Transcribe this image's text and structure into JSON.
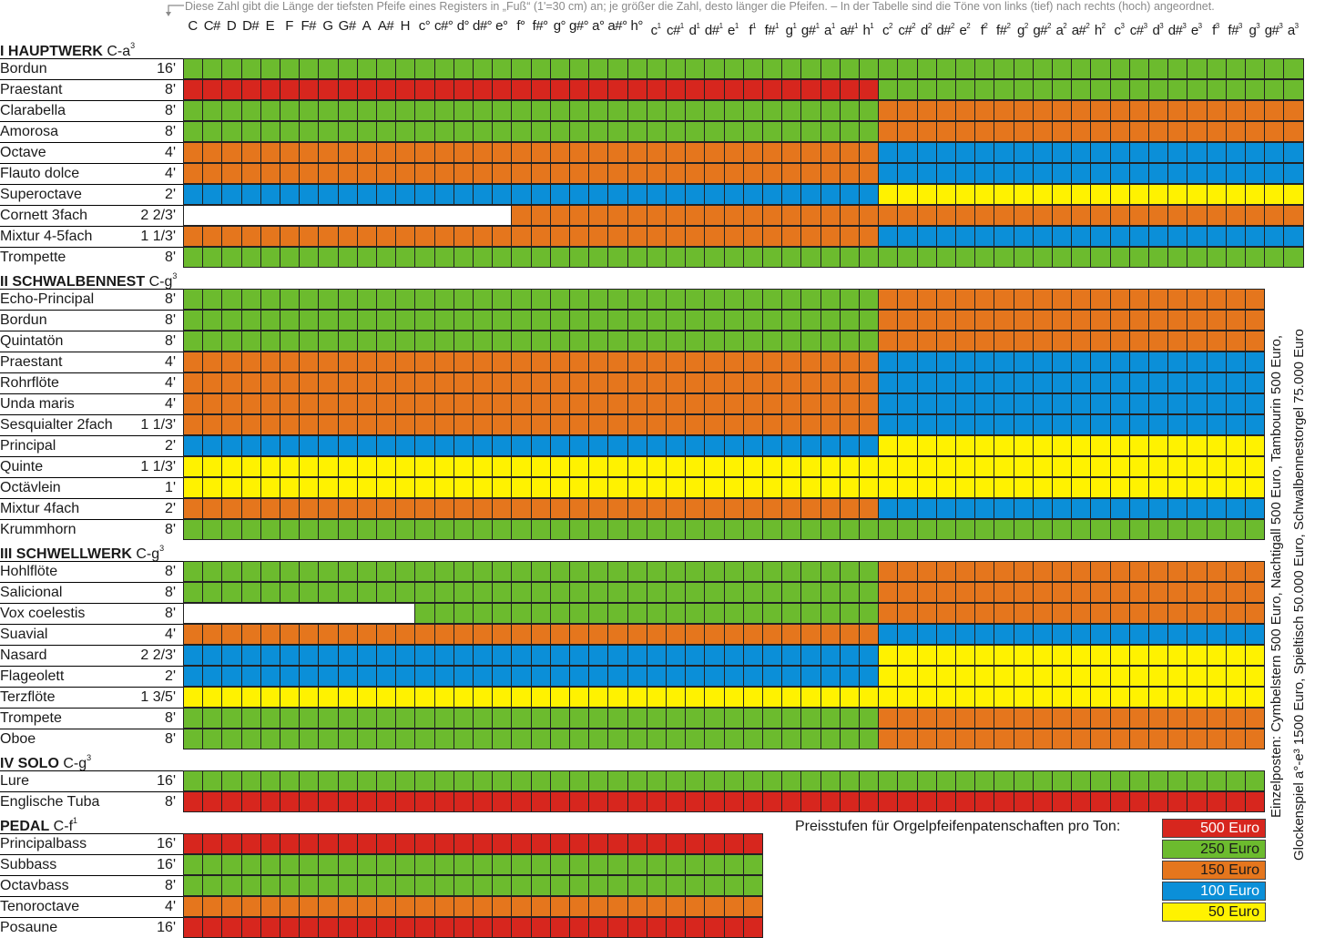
{
  "note": "Diese Zahl gibt die Länge der tiefsten Pfeife eines Registers in „Fuß“ (1'=30 cm) an; je größer die Zahl, desto länger die Pfeifen. – In der Tabelle sind die Töne von links (tief) nach rechts (hoch) angeordnet.",
  "notes": [
    [
      "C",
      ""
    ],
    [
      "C#",
      ""
    ],
    [
      "D",
      ""
    ],
    [
      "D#",
      ""
    ],
    [
      "E",
      ""
    ],
    [
      "F",
      ""
    ],
    [
      "F#",
      ""
    ],
    [
      "G",
      ""
    ],
    [
      "G#",
      ""
    ],
    [
      "A",
      ""
    ],
    [
      "A#",
      ""
    ],
    [
      "H",
      ""
    ],
    [
      "c°",
      ""
    ],
    [
      "c#°",
      ""
    ],
    [
      "d°",
      ""
    ],
    [
      "d#°",
      ""
    ],
    [
      "e°",
      ""
    ],
    [
      "f°",
      ""
    ],
    [
      "f#°",
      ""
    ],
    [
      "g°",
      ""
    ],
    [
      "g#°",
      ""
    ],
    [
      "a°",
      ""
    ],
    [
      "a#°",
      ""
    ],
    [
      "h°",
      ""
    ],
    [
      "c",
      "1"
    ],
    [
      "c#",
      "1"
    ],
    [
      "d",
      "1"
    ],
    [
      "d#",
      "1"
    ],
    [
      "e",
      "1"
    ],
    [
      "f",
      "1"
    ],
    [
      "f#",
      "1"
    ],
    [
      "g",
      "1"
    ],
    [
      "g#",
      "1"
    ],
    [
      "a",
      "1"
    ],
    [
      "a#",
      "1"
    ],
    [
      "h",
      "1"
    ],
    [
      "c",
      "2"
    ],
    [
      "c#",
      "2"
    ],
    [
      "d",
      "2"
    ],
    [
      "d#",
      "2"
    ],
    [
      "e",
      "2"
    ],
    [
      "f",
      "2"
    ],
    [
      "f#",
      "2"
    ],
    [
      "g",
      "2"
    ],
    [
      "g#",
      "2"
    ],
    [
      "a",
      "2"
    ],
    [
      "a#",
      "2"
    ],
    [
      "h",
      "2"
    ],
    [
      "c",
      "3"
    ],
    [
      "c#",
      "3"
    ],
    [
      "d",
      "3"
    ],
    [
      "d#",
      "3"
    ],
    [
      "e",
      "3"
    ],
    [
      "f",
      "3"
    ],
    [
      "f#",
      "3"
    ],
    [
      "g",
      "3"
    ],
    [
      "g#",
      "3"
    ],
    [
      "a",
      "3"
    ]
  ],
  "sections": [
    {
      "title": "I HAUPTWERK",
      "range": "C-a",
      "range_sup": "3",
      "registers": [
        {
          "name": "Bordun",
          "foot": "16'",
          "segments": [
            [
              0,
              58,
              "250"
            ]
          ]
        },
        {
          "name": "Praestant",
          "foot": "8'",
          "segments": [
            [
              0,
              36,
              "500"
            ],
            [
              36,
              58,
              "250"
            ]
          ]
        },
        {
          "name": "Clarabella",
          "foot": "8'",
          "segments": [
            [
              0,
              36,
              "250"
            ],
            [
              36,
              58,
              "150"
            ]
          ]
        },
        {
          "name": "Amorosa",
          "foot": "8'",
          "segments": [
            [
              0,
              36,
              "250"
            ],
            [
              36,
              58,
              "150"
            ]
          ]
        },
        {
          "name": "Octave",
          "foot": "4'",
          "segments": [
            [
              0,
              36,
              "150"
            ],
            [
              36,
              58,
              "100"
            ]
          ]
        },
        {
          "name": "Flauto dolce",
          "foot": "4'",
          "segments": [
            [
              0,
              36,
              "150"
            ],
            [
              36,
              58,
              "100"
            ]
          ]
        },
        {
          "name": "Superoctave",
          "foot": "2'",
          "segments": [
            [
              0,
              36,
              "100"
            ],
            [
              36,
              58,
              "50"
            ]
          ]
        },
        {
          "name": "Cornett 3fach",
          "foot": "2 2/3'",
          "segments": [
            [
              0,
              17,
              "none"
            ],
            [
              17,
              58,
              "150"
            ]
          ]
        },
        {
          "name": "Mixtur 4-5fach",
          "foot": "1 1/3'",
          "segments": [
            [
              0,
              36,
              "150"
            ],
            [
              36,
              58,
              "100"
            ]
          ]
        },
        {
          "name": "Trompette",
          "foot": "8'",
          "segments": [
            [
              0,
              58,
              "250"
            ]
          ]
        }
      ]
    },
    {
      "title": "II SCHWALBENNEST",
      "range": "C-g",
      "range_sup": "3",
      "registers": [
        {
          "name": "Echo-Principal",
          "foot": "8'",
          "segments": [
            [
              0,
              36,
              "250"
            ],
            [
              36,
              56,
              "150"
            ]
          ]
        },
        {
          "name": "Bordun",
          "foot": "8'",
          "segments": [
            [
              0,
              36,
              "250"
            ],
            [
              36,
              56,
              "150"
            ]
          ]
        },
        {
          "name": "Quintatön",
          "foot": "8'",
          "segments": [
            [
              0,
              36,
              "250"
            ],
            [
              36,
              56,
              "150"
            ]
          ]
        },
        {
          "name": "Praestant",
          "foot": "4'",
          "segments": [
            [
              0,
              36,
              "150"
            ],
            [
              36,
              56,
              "100"
            ]
          ]
        },
        {
          "name": "Rohrflöte",
          "foot": "4'",
          "segments": [
            [
              0,
              36,
              "150"
            ],
            [
              36,
              56,
              "100"
            ]
          ]
        },
        {
          "name": "Unda maris",
          "foot": "4'",
          "segments": [
            [
              0,
              36,
              "150"
            ],
            [
              36,
              56,
              "100"
            ]
          ]
        },
        {
          "name": "Sesquialter 2fach",
          "foot": "1 1/3'",
          "segments": [
            [
              0,
              36,
              "150"
            ],
            [
              36,
              56,
              "100"
            ]
          ]
        },
        {
          "name": "Principal",
          "foot": "2'",
          "segments": [
            [
              0,
              36,
              "100"
            ],
            [
              36,
              56,
              "50"
            ]
          ]
        },
        {
          "name": "Quinte",
          "foot": "1 1/3'",
          "segments": [
            [
              0,
              56,
              "50"
            ]
          ]
        },
        {
          "name": "Octävlein",
          "foot": "1'",
          "segments": [
            [
              0,
              56,
              "50"
            ]
          ]
        },
        {
          "name": "Mixtur 4fach",
          "foot": "2'",
          "segments": [
            [
              0,
              36,
              "150"
            ],
            [
              36,
              56,
              "100"
            ]
          ]
        },
        {
          "name": "Krummhorn",
          "foot": "8'",
          "segments": [
            [
              0,
              56,
              "250"
            ]
          ]
        }
      ]
    },
    {
      "title": "III SCHWELLWERK",
      "range": "C-g",
      "range_sup": "3",
      "registers": [
        {
          "name": "Hohlflöte",
          "foot": "8'",
          "segments": [
            [
              0,
              36,
              "250"
            ],
            [
              36,
              56,
              "150"
            ]
          ]
        },
        {
          "name": "Salicional",
          "foot": "8'",
          "segments": [
            [
              0,
              36,
              "250"
            ],
            [
              36,
              56,
              "150"
            ]
          ]
        },
        {
          "name": "Vox coelestis",
          "foot": "8'",
          "segments": [
            [
              0,
              12,
              "none"
            ],
            [
              12,
              36,
              "250"
            ],
            [
              36,
              56,
              "150"
            ]
          ]
        },
        {
          "name": "Suavial",
          "foot": "4'",
          "segments": [
            [
              0,
              36,
              "150"
            ],
            [
              36,
              56,
              "100"
            ]
          ]
        },
        {
          "name": "Nasard",
          "foot": "2 2/3'",
          "segments": [
            [
              0,
              36,
              "100"
            ],
            [
              36,
              56,
              "50"
            ]
          ]
        },
        {
          "name": "Flageolett",
          "foot": "2'",
          "segments": [
            [
              0,
              36,
              "100"
            ],
            [
              36,
              56,
              "50"
            ]
          ]
        },
        {
          "name": "Terzflöte",
          "foot": "1 3/5'",
          "segments": [
            [
              0,
              56,
              "50"
            ]
          ]
        },
        {
          "name": "Trompete",
          "foot": "8'",
          "segments": [
            [
              0,
              36,
              "250"
            ],
            [
              36,
              56,
              "150"
            ]
          ]
        },
        {
          "name": "Oboe",
          "foot": "8'",
          "segments": [
            [
              0,
              36,
              "250"
            ],
            [
              36,
              56,
              "150"
            ]
          ]
        }
      ]
    },
    {
      "title": "IV SOLO",
      "range": "C-g",
      "range_sup": "3",
      "registers": [
        {
          "name": "Lure",
          "foot": "16'",
          "segments": [
            [
              0,
              56,
              "250"
            ]
          ]
        },
        {
          "name": "Englische Tuba",
          "foot": "8'",
          "segments": [
            [
              0,
              56,
              "500"
            ]
          ]
        }
      ]
    },
    {
      "title": "PEDAL",
      "range": "C-f",
      "range_sup": "1",
      "registers": [
        {
          "name": "Principalbass",
          "foot": "16'",
          "segments": [
            [
              0,
              30,
              "500"
            ]
          ]
        },
        {
          "name": "Subbass",
          "foot": "16'",
          "segments": [
            [
              0,
              30,
              "250"
            ]
          ]
        },
        {
          "name": "Octavbass",
          "foot": "8'",
          "segments": [
            [
              0,
              30,
              "250"
            ]
          ]
        },
        {
          "name": "Tenoroctave",
          "foot": "4'",
          "segments": [
            [
              0,
              30,
              "150"
            ]
          ]
        },
        {
          "name": "Posaune",
          "foot": "16'",
          "segments": [
            [
              0,
              30,
              "500"
            ]
          ]
        }
      ]
    }
  ],
  "side_lines": [
    "Einzelposten: Cymbelstern 500 Euro, Nachtigall 500 Euro, Tambourin 500 Euro,",
    "Glockenspiel a°-e³ 1500 Euro, Spieltisch 50.000 Euro, Schwalbennestorgel 75.000 Euro"
  ],
  "legend": {
    "title": "Preisstufen für Orgelpfeifenpatenschaften pro Ton:",
    "items": [
      {
        "key": "500",
        "label": "500 Euro",
        "color": "#d7261e"
      },
      {
        "key": "250",
        "label": "250 Euro",
        "color": "#6cbb2e"
      },
      {
        "key": "150",
        "label": "150 Euro",
        "color": "#e5761d"
      },
      {
        "key": "100",
        "label": "100 Euro",
        "color": "#0b8fd8"
      },
      {
        "key": "50",
        "label": "50 Euro",
        "color": "#fff200"
      }
    ]
  }
}
